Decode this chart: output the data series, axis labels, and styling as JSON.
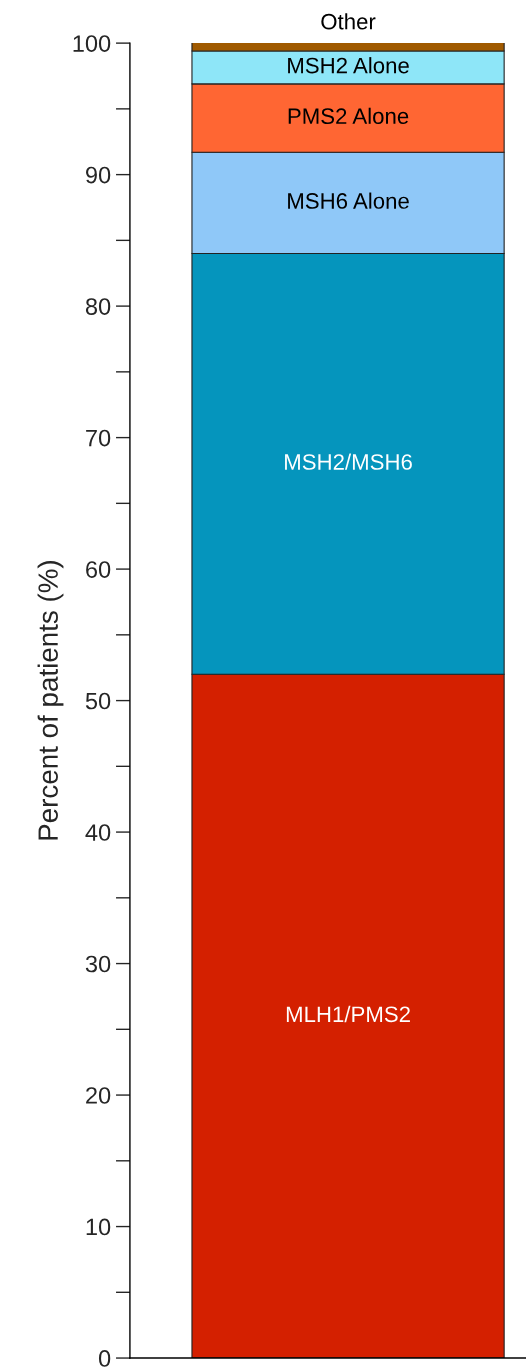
{
  "chart_data": {
    "type": "bar",
    "stacked": true,
    "ylabel": "Percent of patients (%)",
    "categories": [
      null
    ],
    "series": [
      {
        "name": "MLH1/PMS2",
        "color": "#d42000",
        "values": [
          52.0
        ]
      },
      {
        "name": "MSH2/MSH6",
        "color": "#0595bd",
        "values": [
          32.0
        ]
      },
      {
        "name": "MSH6 Alone",
        "color": "#8fc8f8",
        "values": [
          7.7
        ]
      },
      {
        "name": "PMS2 Alone",
        "color": "#ff6633",
        "values": [
          5.2
        ]
      },
      {
        "name": "MSH2 Alone",
        "color": "#8ee6f8",
        "values": [
          2.5
        ]
      },
      {
        "name": "Other",
        "color": "#a05a00",
        "values": [
          1.0
        ]
      }
    ],
    "ylim": [
      0,
      100
    ],
    "yticks": [
      0,
      10,
      20,
      30,
      40,
      50,
      60,
      70,
      80,
      90,
      100
    ],
    "tick_labels": "y",
    "grid": false,
    "legend": false
  }
}
